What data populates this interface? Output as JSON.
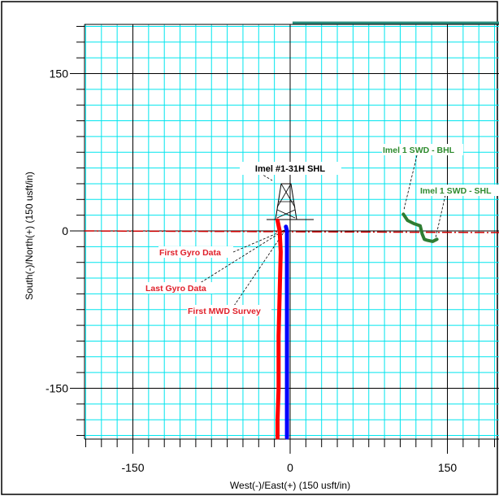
{
  "chart_data": {
    "type": "line",
    "title": "",
    "xlabel": "West(-)/East(+) (150 usft/in)",
    "ylabel": "South(-)/North(+) (150 usft/in)",
    "xlim": [
      -200,
      200
    ],
    "ylim": [
      -200,
      197
    ],
    "x_ticks": [
      -150,
      0,
      150
    ],
    "y_ticks": [
      150,
      0,
      -150
    ],
    "x_tick_labels": [
      "-150",
      "0",
      "150"
    ],
    "y_tick_labels": [
      "150",
      "0",
      "-150"
    ],
    "grid": true,
    "grid_minor_step": 15,
    "grid_major_step": 150,
    "colors": {
      "grid_minor": "#00e5ee",
      "grid_major": "#000000",
      "wellbore_red": "#ff0000",
      "wellbore_blue": "#0000ff",
      "target_green": "#2e7d32",
      "reference_line": "#cc0000",
      "top_line": "#2a8c7c"
    },
    "series": [
      {
        "color": "#ff0000",
        "x": [
          -12,
          -11,
          -10,
          -9,
          -10,
          -11,
          -11,
          -12,
          -12
        ],
        "y": [
          10,
          5,
          0,
          -20,
          -60,
          -100,
          -150,
          -180,
          -197
        ]
      },
      {
        "color": "#0000ff",
        "x": [
          -4,
          -3,
          -3,
          -3,
          -3,
          -3,
          -3
        ],
        "y": [
          4,
          0,
          -20,
          -60,
          -100,
          -150,
          -197
        ]
      },
      {
        "color": "#2e7d32",
        "x": [
          108,
          112,
          118,
          124,
          126,
          128,
          131,
          136,
          140
        ],
        "y": [
          16,
          10,
          7,
          5,
          -3,
          -8,
          -9,
          -10,
          -8
        ]
      }
    ],
    "annotations": [
      {
        "text": "Imel #1-31H SHL",
        "color": "black"
      },
      {
        "text": "Imel 1 SWD - BHL",
        "color": "green"
      },
      {
        "text": "Imel 1 SWD - SHL",
        "color": "green"
      },
      {
        "text": "First Gyro Data",
        "color": "red"
      },
      {
        "text": "Last Gyro Data",
        "color": "red"
      },
      {
        "text": "First MWD Survey",
        "color": "red"
      }
    ]
  }
}
